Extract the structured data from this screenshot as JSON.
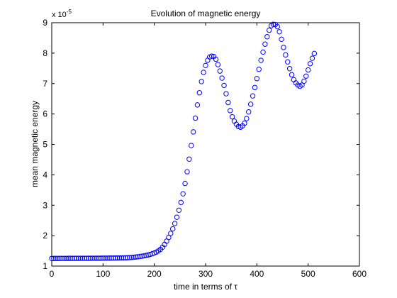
{
  "chart_data": {
    "type": "scatter",
    "title": "Evolution of magnetic energy",
    "xlabel": "time in terms of τ",
    "ylabel": "mean magnetic energy",
    "y_multiplier_label": "x 10",
    "y_multiplier_exponent": "-5",
    "xlim": [
      0,
      600
    ],
    "ylim": [
      1,
      9
    ],
    "xticks": [
      0,
      100,
      200,
      300,
      400,
      500,
      600
    ],
    "yticks": [
      1,
      2,
      3,
      4,
      5,
      6,
      7,
      8,
      9
    ],
    "grid": false,
    "marker": "circle",
    "series_color": "#0000ff",
    "key_points": [
      {
        "x": 0,
        "y": 1.25
      },
      {
        "x": 140,
        "y": 1.27
      },
      {
        "x": 170,
        "y": 1.31
      },
      {
        "x": 195,
        "y": 1.4
      },
      {
        "x": 212,
        "y": 1.55
      },
      {
        "x": 225,
        "y": 1.85
      },
      {
        "x": 240,
        "y": 2.4
      },
      {
        "x": 255,
        "y": 3.3
      },
      {
        "x": 265,
        "y": 4.2
      },
      {
        "x": 275,
        "y": 5.3
      },
      {
        "x": 285,
        "y": 6.4
      },
      {
        "x": 295,
        "y": 7.3
      },
      {
        "x": 305,
        "y": 7.8
      },
      {
        "x": 312,
        "y": 7.9
      },
      {
        "x": 320,
        "y": 7.8
      },
      {
        "x": 335,
        "y": 7.0
      },
      {
        "x": 350,
        "y": 6.0
      },
      {
        "x": 362,
        "y": 5.62
      },
      {
        "x": 370,
        "y": 5.58
      },
      {
        "x": 380,
        "y": 5.85
      },
      {
        "x": 395,
        "y": 6.8
      },
      {
        "x": 410,
        "y": 7.9
      },
      {
        "x": 425,
        "y": 8.8
      },
      {
        "x": 433,
        "y": 8.95
      },
      {
        "x": 442,
        "y": 8.8
      },
      {
        "x": 455,
        "y": 8.0
      },
      {
        "x": 470,
        "y": 7.2
      },
      {
        "x": 480,
        "y": 6.95
      },
      {
        "x": 487,
        "y": 6.93
      },
      {
        "x": 495,
        "y": 7.2
      },
      {
        "x": 505,
        "y": 7.7
      },
      {
        "x": 513,
        "y": 8.03
      }
    ]
  }
}
